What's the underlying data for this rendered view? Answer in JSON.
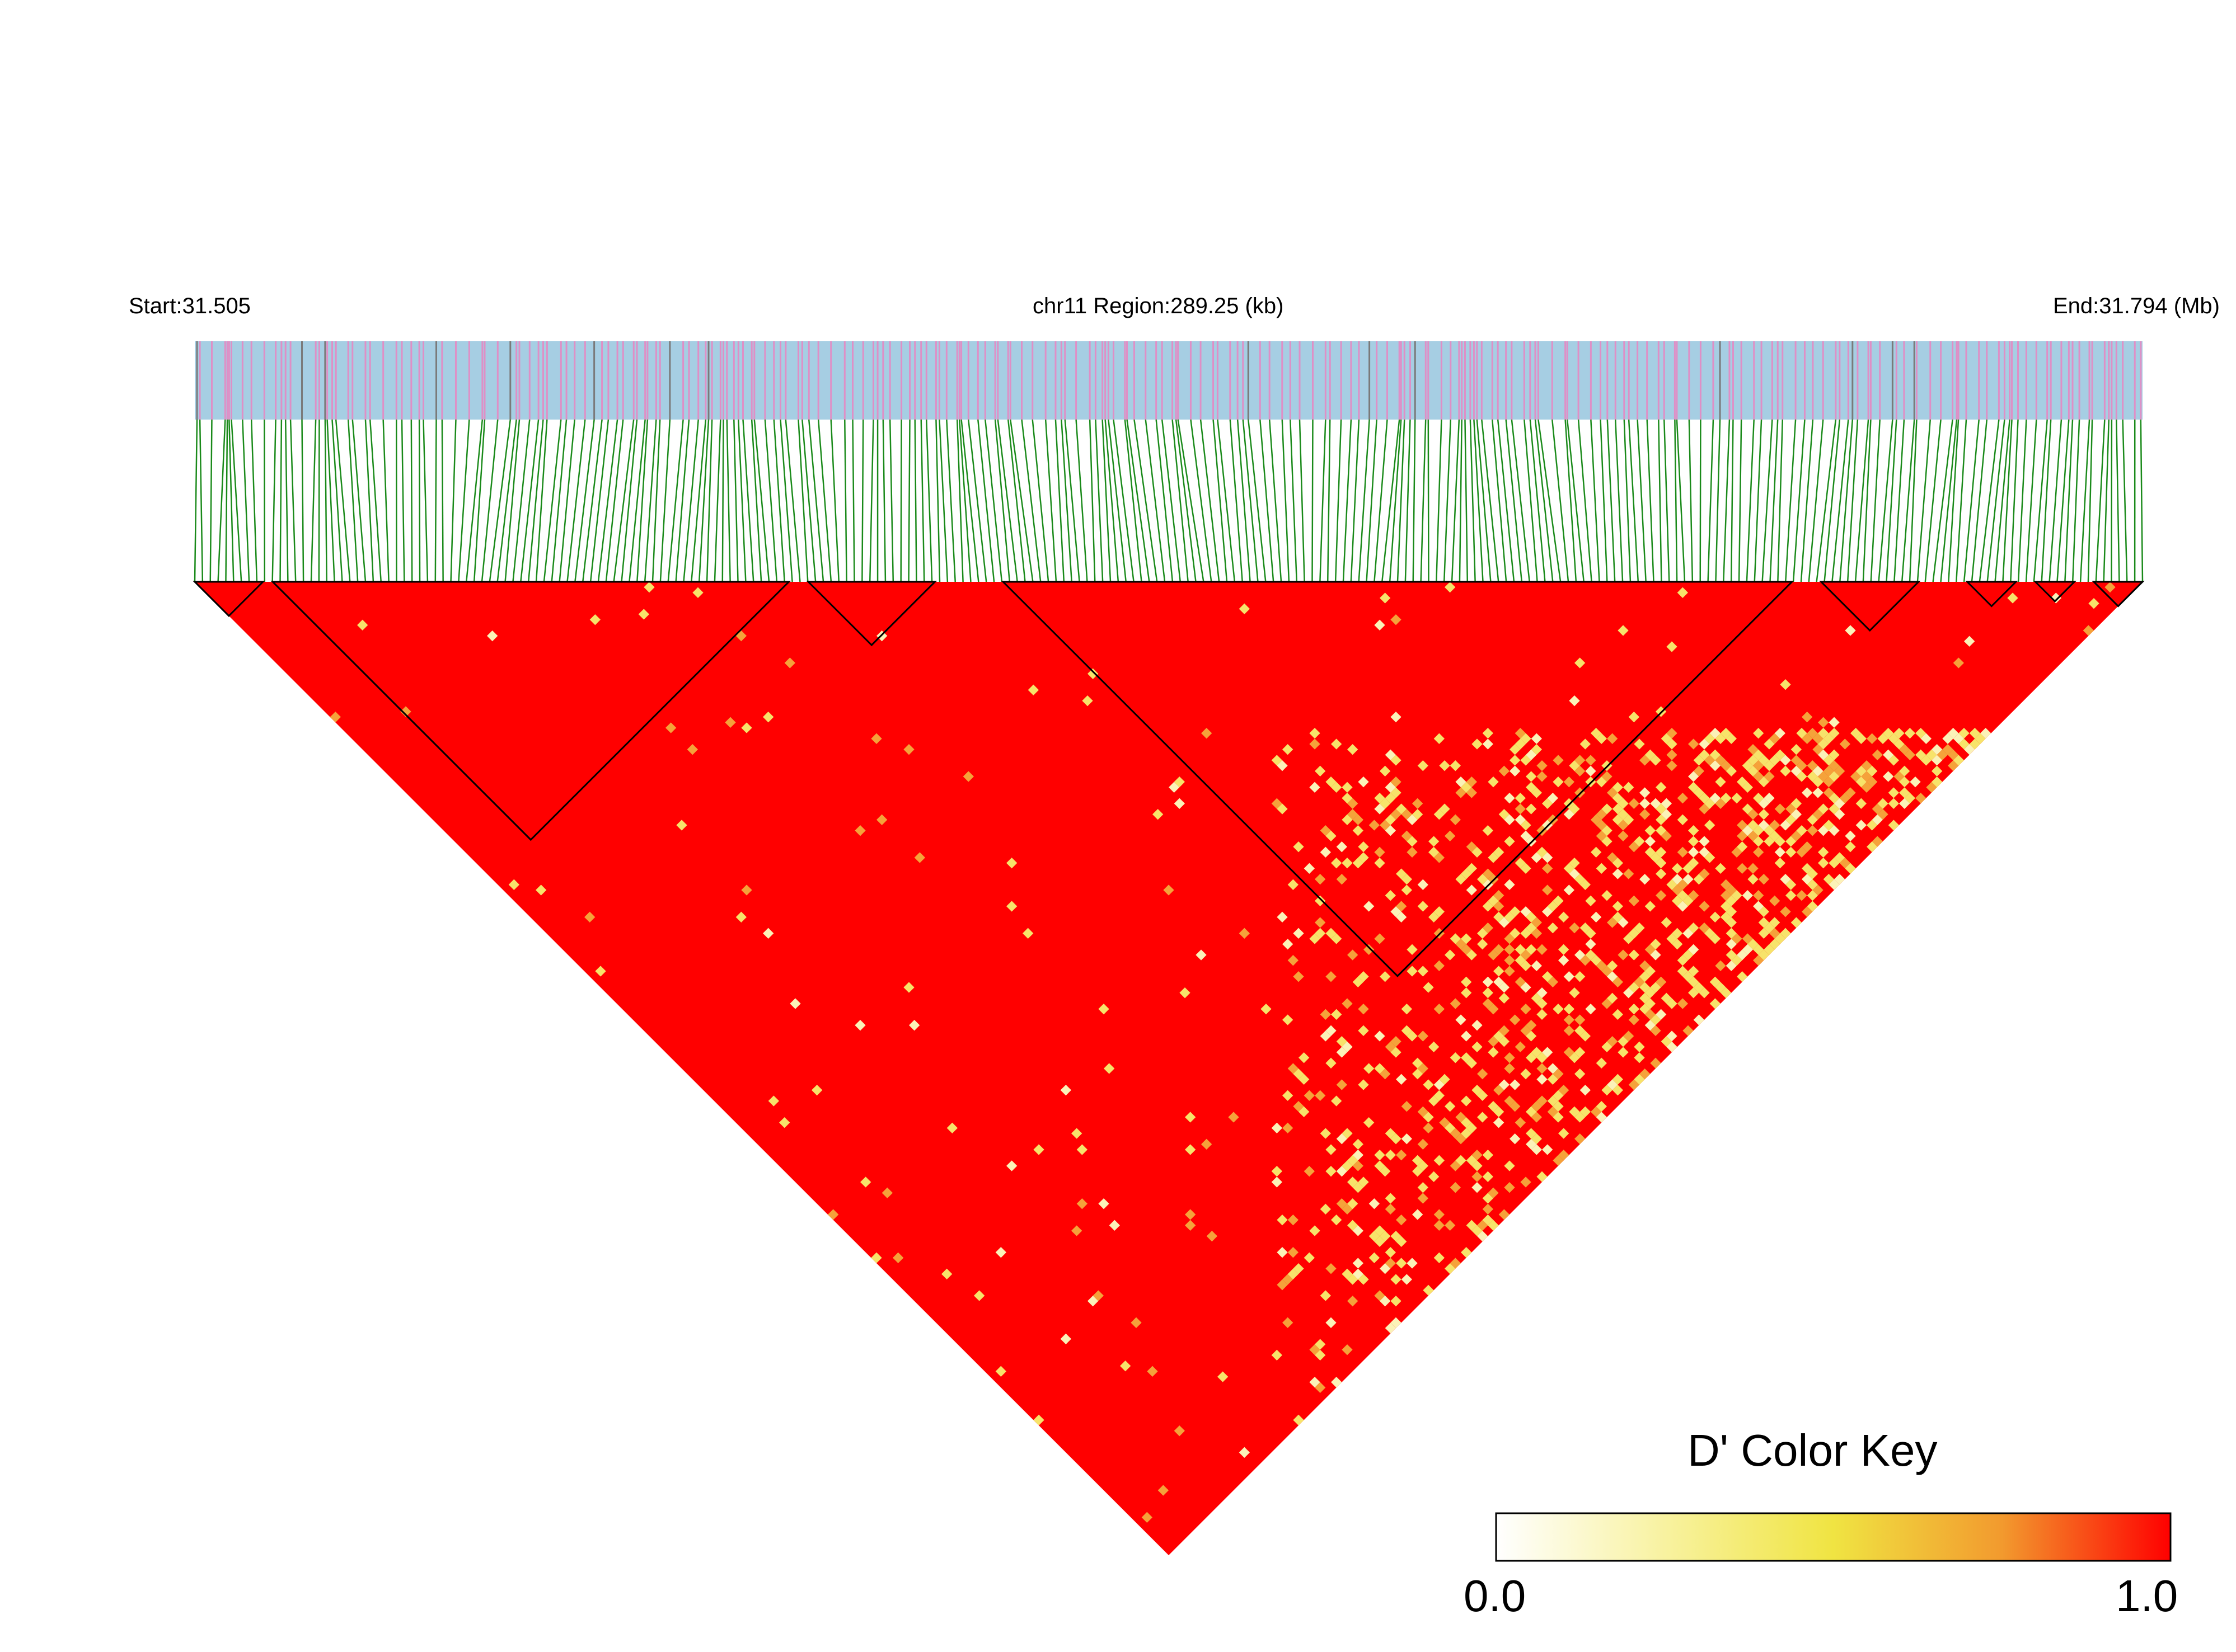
{
  "header": {
    "start_label": "Start:31.505",
    "region_label": "chr11 Region:289.25 (kb)",
    "end_label": "End:31.794 (Mb)"
  },
  "colors": {
    "track_background": "#a6cee3",
    "snp_marker": "#df8fc6",
    "snp_marker_dark": "#7a7a7a",
    "connector_line": "#1a8a1a",
    "ld_high": "#ff0000",
    "ld_mid": "#f0e442",
    "ld_low": "#ffffff",
    "block_outline": "#000000"
  },
  "color_key": {
    "title": "D' Color Key",
    "min_label": "0.0",
    "max_label": "1.0",
    "stops": [
      "#ffffff",
      "#f8f2a0",
      "#f0e442",
      "#f29a2e",
      "#ff0000"
    ]
  }
}
